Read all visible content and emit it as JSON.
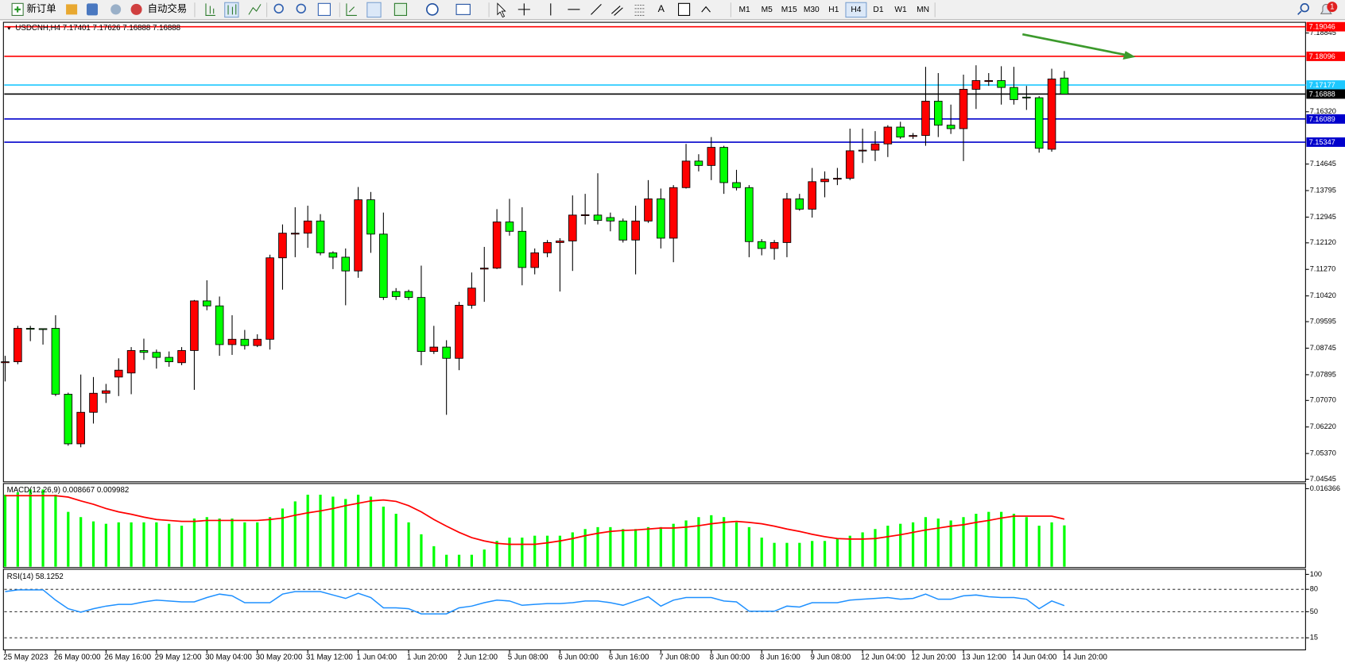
{
  "toolbar": {
    "new_order": "新订单",
    "auto_trading": "自动交易",
    "text_tool": "A",
    "timeframes": [
      "M1",
      "M5",
      "M15",
      "M30",
      "H1",
      "H4",
      "D1",
      "W1",
      "MN"
    ],
    "active_timeframe": "H4",
    "badge": "1"
  },
  "chart_data": [
    {
      "type": "candlestick",
      "title": "USDCNH,H4  7.17401 7.17626 7.16888 7.16888",
      "up_color": "#ff0000",
      "down_color": "#00ff00",
      "categories": [
        "25 May 2023",
        null,
        null,
        null,
        "26 May 00:00",
        null,
        null,
        null,
        "26 May 16:00",
        null,
        null,
        null,
        "29 May 12:00",
        null,
        null,
        null,
        "30 May 04:00",
        null,
        null,
        null,
        "30 May 20:00",
        null,
        null,
        null,
        "31 May 12:00",
        null,
        null,
        null,
        "1 Jun 04:00",
        null,
        null,
        null,
        "1 Jun 20:00",
        null,
        null,
        null,
        "2 Jun 12:00",
        null,
        null,
        null,
        "5 Jun 08:00",
        null,
        null,
        null,
        "6 Jun 00:00",
        null,
        null,
        null,
        "6 Jun 16:00",
        null,
        null,
        null,
        "7 Jun 08:00",
        null,
        null,
        null,
        "8 Jun 00:00",
        null,
        null,
        null,
        "8 Jun 16:00",
        null,
        null,
        null,
        "9 Jun 08:00",
        null,
        null,
        null,
        "12 Jun 04:00",
        null,
        null,
        null,
        "12 Jun 20:00",
        null,
        null,
        null,
        "13 Jun 12:00",
        null,
        null,
        null,
        "14 Jun 04:00",
        null,
        null,
        null,
        "14 Jun 20:00"
      ],
      "open": [
        7.0828,
        7.0831,
        7.0938,
        7.0937,
        7.0938,
        7.0727,
        7.0568,
        7.0669,
        7.073,
        7.0782,
        7.0795,
        7.0867,
        7.0861,
        7.0845,
        7.0828,
        7.0867,
        7.1026,
        7.101,
        7.0886,
        7.0903,
        7.0883,
        7.0903,
        7.1164,
        7.124,
        7.1243,
        7.1282,
        7.118,
        7.1166,
        7.1122,
        7.135,
        7.124,
        7.1056,
        7.1056,
        7.1037,
        7.0864,
        7.0878,
        7.0842,
        7.1012,
        7.1128,
        7.1131,
        7.1279,
        7.1249,
        7.1133,
        7.118,
        7.1213,
        7.1218,
        7.1301,
        7.1301,
        7.1293,
        7.1282,
        7.1221,
        7.1282,
        7.1353,
        7.1227,
        7.1389,
        7.1474,
        7.146,
        7.1518,
        7.1405,
        7.1389,
        7.1216,
        7.1194,
        7.1213,
        7.1353,
        7.132,
        7.1408,
        7.1416,
        7.1419,
        7.1507,
        7.1509,
        7.1529,
        7.1583,
        7.1553,
        7.1556,
        7.1666,
        7.1589,
        7.1578,
        7.1704,
        7.1729,
        7.1732,
        7.171,
        7.1679,
        7.1677,
        7.1512,
        7.17401
      ],
      "high": [
        7.085,
        7.0946,
        7.0946,
        7.0938,
        7.098,
        7.0732,
        7.079,
        7.0782,
        7.076,
        7.0842,
        7.0878,
        7.0905,
        7.087,
        7.0864,
        7.0878,
        7.1029,
        7.1092,
        7.104,
        7.098,
        7.0933,
        7.0919,
        7.1174,
        7.1271,
        7.1326,
        7.1331,
        7.1304,
        7.1185,
        7.1194,
        7.1391,
        7.1375,
        7.1309,
        7.1067,
        7.1062,
        7.1139,
        7.0946,
        7.09,
        7.1023,
        7.1117,
        7.1199,
        7.132,
        7.1353,
        7.1326,
        7.1194,
        7.1221,
        7.1227,
        7.1364,
        7.1369,
        7.1435,
        7.1309,
        7.129,
        7.1331,
        7.1413,
        7.1386,
        7.1397,
        7.1529,
        7.1496,
        7.1551,
        7.1523,
        7.1446,
        7.1397,
        7.1224,
        7.1221,
        7.1372,
        7.1369,
        7.1452,
        7.1441,
        7.1452,
        7.1578,
        7.1578,
        7.157,
        7.1589,
        7.16,
        7.1564,
        7.1776,
        7.1756,
        7.1655,
        7.1751,
        7.1781,
        7.1756,
        7.1778,
        7.1776,
        7.1715,
        7.1682,
        7.177,
        7.17626
      ],
      "low": [
        7.0768,
        7.0823,
        7.0897,
        7.0886,
        7.0721,
        7.0562,
        7.0557,
        7.0633,
        7.0699,
        7.0721,
        7.0727,
        7.0837,
        7.0809,
        7.0815,
        7.082,
        7.0741,
        7.0996,
        7.085,
        7.0853,
        7.087,
        7.0878,
        7.087,
        7.1062,
        7.1166,
        7.1196,
        7.1172,
        7.1128,
        7.1012,
        7.11,
        7.118,
        7.1029,
        7.1029,
        7.1029,
        7.082,
        7.0856,
        7.0661,
        7.0804,
        7.1001,
        7.1023,
        7.1128,
        7.1235,
        7.1076,
        7.1111,
        7.1166,
        7.1056,
        7.1122,
        7.1271,
        7.1271,
        7.1249,
        7.1213,
        7.1111,
        7.1276,
        7.1194,
        7.115,
        7.1386,
        7.1441,
        7.1413,
        7.1369,
        7.138,
        7.1166,
        7.1172,
        7.1158,
        7.1166,
        7.1315,
        7.1293,
        7.1358,
        7.1397,
        7.1413,
        7.1468,
        7.1474,
        7.1487,
        7.1545,
        7.1545,
        7.1523,
        7.1551,
        7.1561,
        7.1474,
        7.1641,
        7.1715,
        7.1655,
        7.1655,
        7.1638,
        7.1501,
        7.1504,
        7.16888
      ],
      "close": [
        7.0831,
        7.0938,
        7.0936,
        7.0935,
        7.0727,
        7.0568,
        7.0669,
        7.073,
        7.0738,
        7.0804,
        7.0867,
        7.0861,
        7.0845,
        7.0831,
        7.0867,
        7.1026,
        7.101,
        7.0886,
        7.0903,
        7.0883,
        7.0903,
        7.1164,
        7.1243,
        7.1243,
        7.1282,
        7.118,
        7.1166,
        7.1122,
        7.135,
        7.124,
        7.1037,
        7.104,
        7.1037,
        7.0864,
        7.0878,
        7.0842,
        7.1012,
        7.1067,
        7.1131,
        7.1279,
        7.1249,
        7.1133,
        7.118,
        7.1213,
        7.1218,
        7.1301,
        7.1302,
        7.1284,
        7.1282,
        7.1221,
        7.1282,
        7.1353,
        7.1227,
        7.1389,
        7.1474,
        7.146,
        7.1518,
        7.1405,
        7.1389,
        7.1216,
        7.1194,
        7.1213,
        7.1353,
        7.132,
        7.1408,
        7.1416,
        7.1419,
        7.1507,
        7.1509,
        7.1529,
        7.1583,
        7.1551,
        7.1556,
        7.1666,
        7.1589,
        7.1578,
        7.1704,
        7.1732,
        7.1732,
        7.171,
        7.1671,
        7.1677,
        7.1515,
        7.1737,
        7.16888
      ],
      "ylim": [
        7.0449,
        7.1916
      ],
      "yticks": [
        7.18845,
        {
          "value": 7.1632,
          "label": "7.16320"
        },
        7.14645,
        7.13795,
        7.12945,
        {
          "value": 7.1212,
          "label": "7.12120"
        },
        {
          "value": 7.1127,
          "label": "7.11270"
        },
        {
          "value": 7.1042,
          "label": "7.10420"
        },
        7.09595,
        7.08745,
        7.07895,
        {
          "value": 7.0707,
          "label": "7.07070"
        },
        {
          "value": 7.0622,
          "label": "7.06220"
        },
        {
          "value": 7.0537,
          "label": "7.05370"
        },
        7.04545
      ],
      "hlines": [
        {
          "value": 7.19046,
          "color": "#ff0000"
        },
        {
          "value": 7.18096,
          "color": "#ff0000"
        },
        {
          "value": 7.17177,
          "color": "#1ec8ff"
        },
        {
          "value": 7.16888,
          "color": "#000000"
        },
        {
          "value": 7.16089,
          "color": "#0000cc"
        },
        {
          "value": 7.15347,
          "color": "#0000cc"
        }
      ],
      "grid": false
    },
    {
      "type": "macd",
      "title": "MACD(12,26,9) 0.008667 0.009982",
      "color": "#00ff00",
      "signal_color": "#ff0000",
      "values": [
        0.0151,
        0.0156,
        0.0162,
        0.0162,
        0.0151,
        0.0115,
        0.0104,
        0.0095,
        0.009,
        0.0093,
        0.0093,
        0.0093,
        0.0093,
        0.009,
        0.0086,
        0.0101,
        0.0104,
        0.0101,
        0.0101,
        0.0093,
        0.0093,
        0.0104,
        0.0122,
        0.0137,
        0.0151,
        0.0151,
        0.0147,
        0.0142,
        0.0151,
        0.0147,
        0.0126,
        0.0111,
        0.0093,
        0.0068,
        0.0043,
        0.0025,
        0.0025,
        0.0025,
        0.0036,
        0.0054,
        0.0061,
        0.0061,
        0.0065,
        0.0065,
        0.0065,
        0.0072,
        0.0079,
        0.0083,
        0.0083,
        0.0079,
        0.0079,
        0.0083,
        0.0083,
        0.009,
        0.0097,
        0.0104,
        0.0108,
        0.0104,
        0.0093,
        0.0083,
        0.0061,
        0.005,
        0.005,
        0.005,
        0.0054,
        0.0054,
        0.0058,
        0.0065,
        0.0072,
        0.0079,
        0.0086,
        0.009,
        0.0093,
        0.0104,
        0.0101,
        0.0097,
        0.0104,
        0.0111,
        0.0115,
        0.0115,
        0.0111,
        0.0104,
        0.0086,
        0.0093,
        0.008667
      ],
      "signal": [
        0.0149,
        0.0149,
        0.0149,
        0.0149,
        0.0149,
        0.0146,
        0.0138,
        0.0131,
        0.0122,
        0.0115,
        0.011,
        0.0104,
        0.0099,
        0.0097,
        0.0095,
        0.0095,
        0.0097,
        0.0097,
        0.0097,
        0.0097,
        0.0097,
        0.0099,
        0.0102,
        0.0108,
        0.0113,
        0.0117,
        0.0122,
        0.0128,
        0.0133,
        0.0138,
        0.014,
        0.0137,
        0.0128,
        0.0115,
        0.0099,
        0.0085,
        0.0072,
        0.0061,
        0.0054,
        0.0049,
        0.0047,
        0.0047,
        0.0047,
        0.005,
        0.0054,
        0.0059,
        0.0065,
        0.007,
        0.0074,
        0.0076,
        0.0077,
        0.0079,
        0.0081,
        0.0081,
        0.0083,
        0.0086,
        0.009,
        0.0093,
        0.0095,
        0.0093,
        0.009,
        0.0085,
        0.0079,
        0.0074,
        0.0068,
        0.0063,
        0.0059,
        0.0058,
        0.0058,
        0.0059,
        0.0063,
        0.0067,
        0.0072,
        0.0077,
        0.0081,
        0.0085,
        0.0088,
        0.0093,
        0.0097,
        0.0102,
        0.0106,
        0.0106,
        0.0106,
        0.0106,
        0.009982
      ],
      "ylim": [
        0,
        0.016366
      ],
      "yticks": [
        0.016366
      ]
    },
    {
      "type": "rsi",
      "title": "RSI(14) 58.1252",
      "color": "#1e90ff",
      "values": [
        77.0,
        79.3,
        79.3,
        79.3,
        65.5,
        54.0,
        49.4,
        54.0,
        57.5,
        59.8,
        59.8,
        63.2,
        65.5,
        64.4,
        63.2,
        63.2,
        69.0,
        73.6,
        71.3,
        62.1,
        62.1,
        62.1,
        73.6,
        77.0,
        77.0,
        77.0,
        72.4,
        67.8,
        74.7,
        69.0,
        55.2,
        55.2,
        54.0,
        47.1,
        47.1,
        47.1,
        55.2,
        57.5,
        62.1,
        65.5,
        64.4,
        58.6,
        59.8,
        60.9,
        60.9,
        62.1,
        64.4,
        64.4,
        62.1,
        58.6,
        64.4,
        70.1,
        57.5,
        65.5,
        69.0,
        69.0,
        69.0,
        64.4,
        63.2,
        50.6,
        50.6,
        50.6,
        57.5,
        56.3,
        62.1,
        62.1,
        62.1,
        65.5,
        66.7,
        67.8,
        69.0,
        66.7,
        67.8,
        73.6,
        66.7,
        66.7,
        71.3,
        72.4,
        70.1,
        69.0,
        69.0,
        66.7,
        54.0,
        64.4,
        58.1252
      ],
      "ylim": [
        0,
        100
      ],
      "yticks": [
        100,
        80,
        50,
        15
      ],
      "levels": [
        80,
        50,
        15
      ]
    }
  ]
}
